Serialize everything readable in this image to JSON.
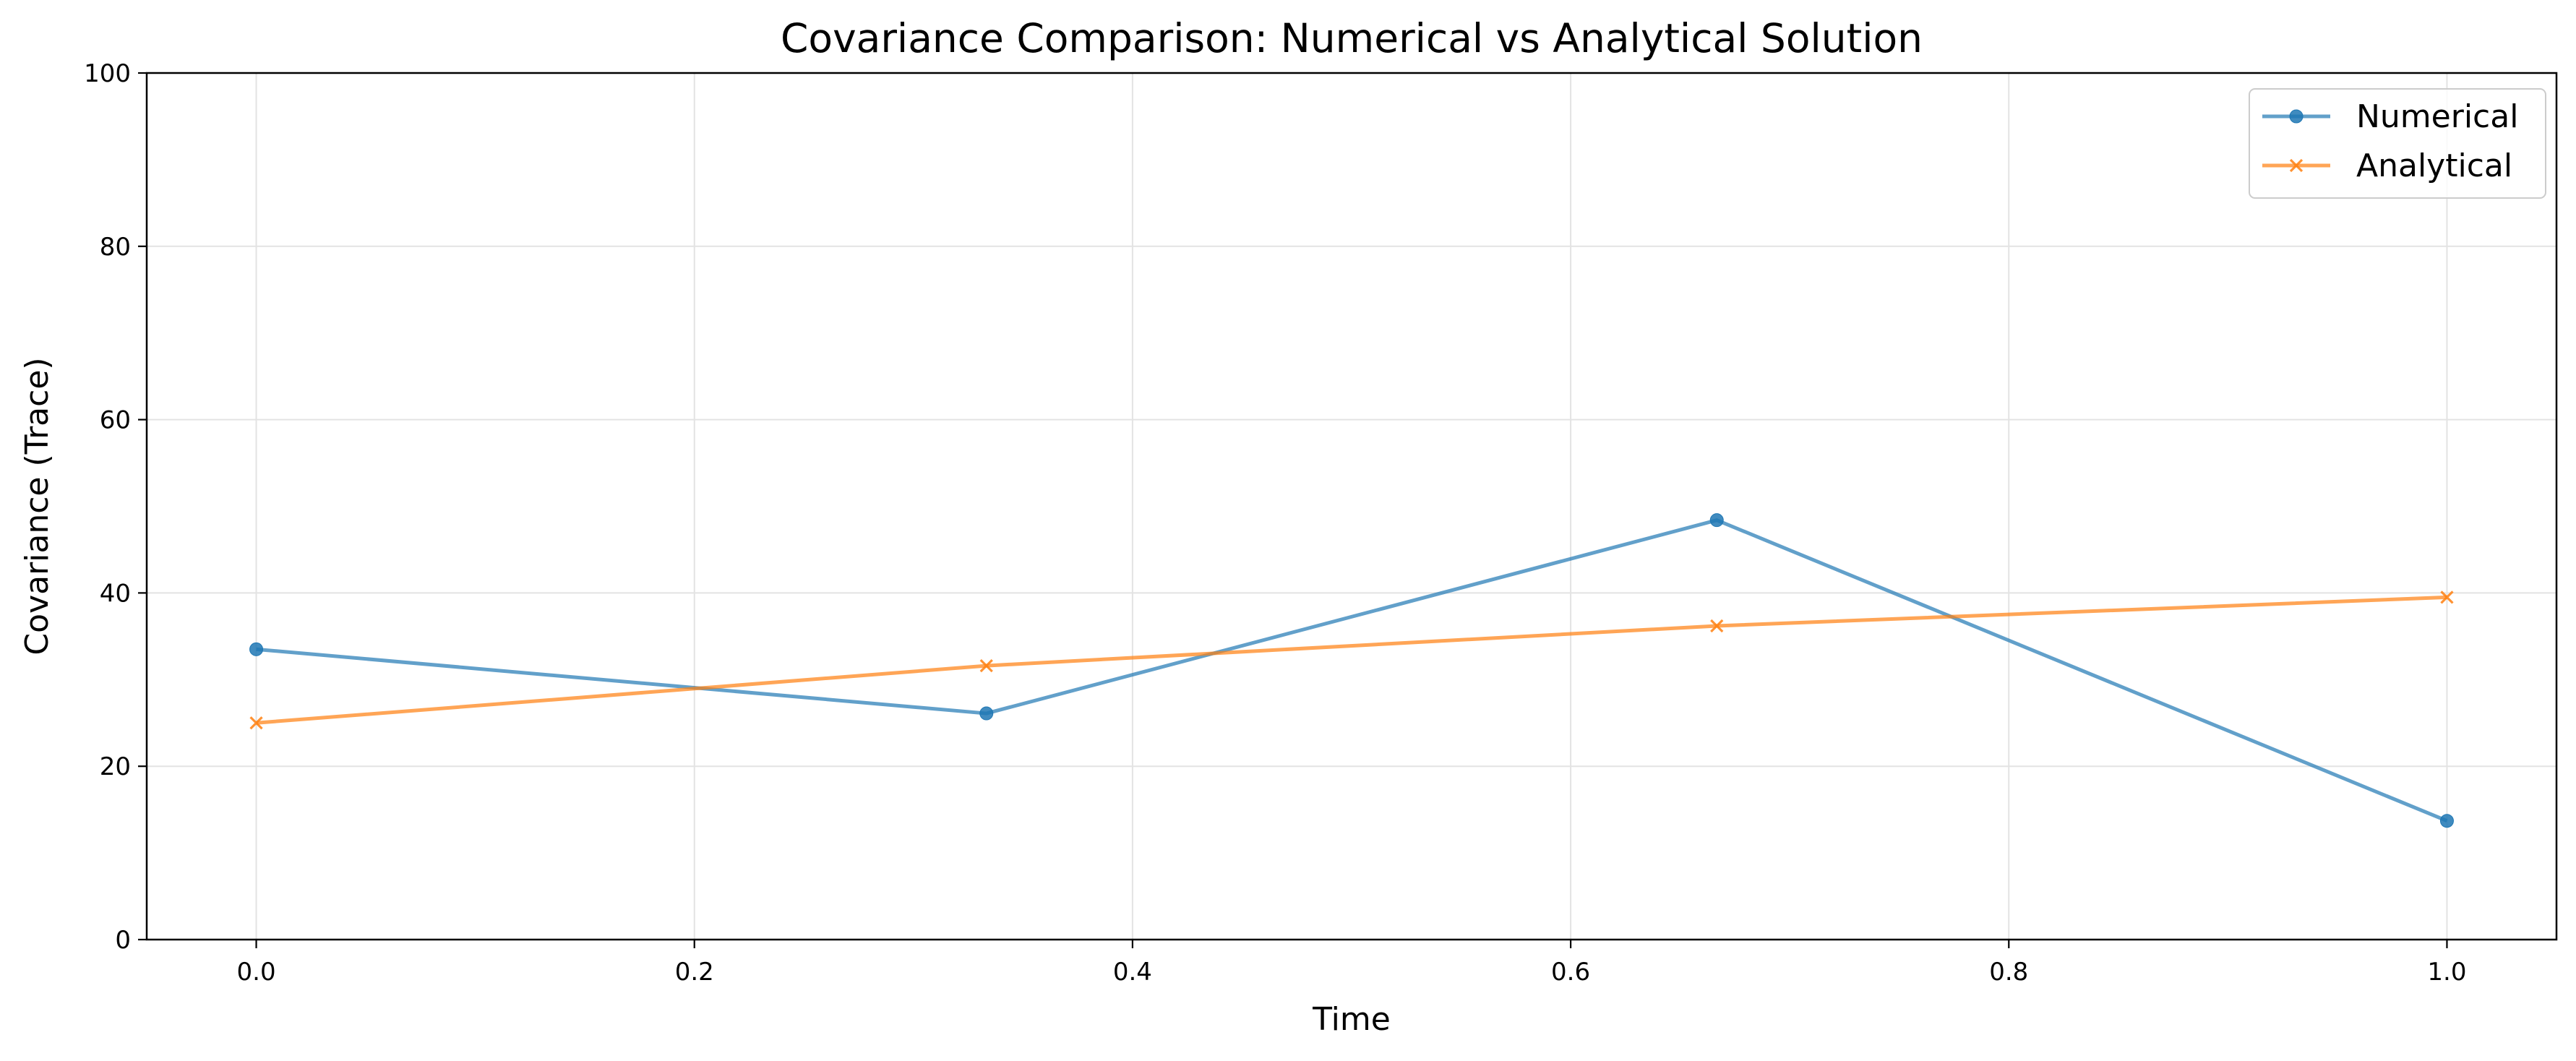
{
  "chart_data": {
    "type": "line",
    "title": "Covariance Comparison: Numerical vs Analytical Solution",
    "xlabel": "Time",
    "ylabel": "Covariance (Trace)",
    "xlim": [
      -0.05,
      1.05
    ],
    "ylim": [
      0,
      100
    ],
    "xticks": [
      0.0,
      0.2,
      0.4,
      0.6,
      0.8,
      1.0
    ],
    "xtick_labels": [
      "0.0",
      "0.2",
      "0.4",
      "0.6",
      "0.8",
      "1.0"
    ],
    "yticks": [
      0,
      20,
      40,
      60,
      80,
      100
    ],
    "ytick_labels": [
      "0",
      "20",
      "40",
      "60",
      "80",
      "100"
    ],
    "grid": true,
    "legend_position": "top-right",
    "x": [
      0.0,
      0.3333,
      0.6667,
      1.0
    ],
    "series": [
      {
        "name": "Numerical",
        "values": [
          33.5,
          26.1,
          48.4,
          13.7
        ],
        "color": "#1f77b4",
        "marker": "circle"
      },
      {
        "name": "Analytical",
        "values": [
          25.0,
          31.6,
          36.2,
          39.5
        ],
        "color": "#ff7f0e",
        "marker": "x"
      }
    ]
  }
}
